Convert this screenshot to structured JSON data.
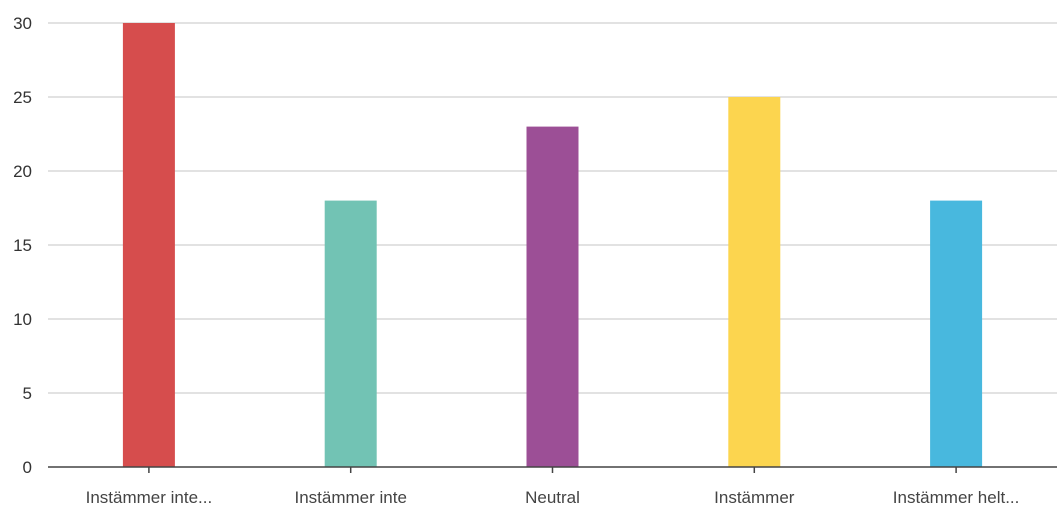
{
  "chart_data": {
    "type": "bar",
    "title": "",
    "xlabel": "",
    "ylabel": "",
    "categories": [
      "Instämmer inte...",
      "Instämmer inte",
      "Neutral",
      "Instämmer",
      "Instämmer helt..."
    ],
    "values": [
      30,
      18,
      23,
      25,
      18
    ],
    "colors": [
      "#d64d4d",
      "#72c3b4",
      "#9c4f96",
      "#fcd54f",
      "#48b8de"
    ],
    "ylim": [
      0,
      30
    ],
    "yticks": [
      0,
      5,
      10,
      15,
      20,
      25,
      30
    ],
    "grid": true,
    "legend": "none"
  }
}
